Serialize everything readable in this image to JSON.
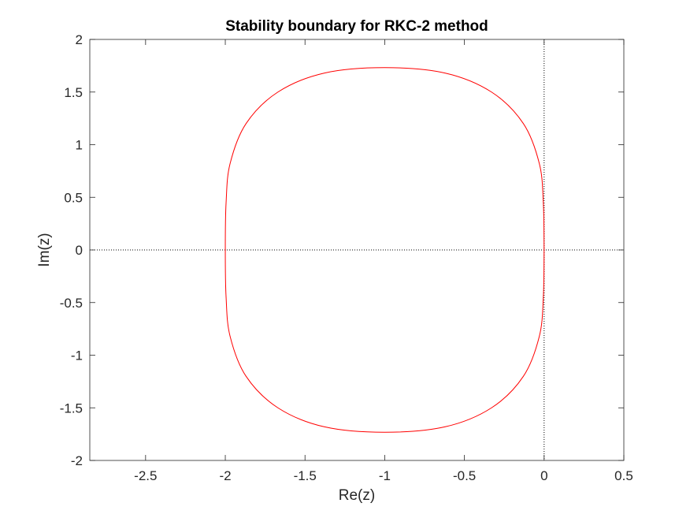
{
  "chart_data": {
    "type": "line",
    "title": "Stability boundary for RKC-2 method",
    "xlabel": "Re(z)",
    "ylabel": "Im(z)",
    "xlim": [
      -2.85,
      0.5
    ],
    "ylim": [
      -2,
      2
    ],
    "xticks": [
      -2.5,
      -2,
      -1.5,
      -1,
      -0.5,
      0,
      0.5
    ],
    "yticks": [
      -2,
      -1.5,
      -1,
      -0.5,
      0,
      0.5,
      1,
      1.5,
      2
    ],
    "x_tick_labels": [
      "-2.5",
      "-2",
      "-1.5",
      "-1",
      "-0.5",
      "0",
      "0.5"
    ],
    "y_tick_labels": [
      "-2",
      "-1.5",
      "-1",
      "-0.5",
      "0",
      "0.5",
      "1",
      "1.5",
      "2"
    ],
    "grid": false,
    "reference_lines": [
      {
        "orientation": "horizontal",
        "value": 0,
        "style": "dotted",
        "color": "#000000"
      },
      {
        "orientation": "vertical",
        "value": 0,
        "style": "dotted",
        "color": "#000000"
      }
    ],
    "series": [
      {
        "color": "#ff0000",
        "curve": "stability boundary |1 + z + z^2/2| = 1",
        "x": [
          0,
          -0.005,
          -0.03,
          -0.13,
          -0.33,
          -0.62,
          -1,
          -1.38,
          -1.67,
          -1.87,
          -1.97,
          -1.995,
          -2,
          -1.995,
          -1.97,
          -1.87,
          -1.67,
          -1.38,
          -1,
          -0.62,
          -0.33,
          -0.13,
          -0.03,
          -0.005,
          0
        ],
        "y": [
          0,
          0.45,
          0.82,
          1.2,
          1.5,
          1.68,
          1.732,
          1.68,
          1.5,
          1.2,
          0.82,
          0.45,
          0,
          -0.45,
          -0.82,
          -1.2,
          -1.5,
          -1.68,
          -1.732,
          -1.68,
          -1.5,
          -1.2,
          -0.82,
          -0.45,
          0
        ]
      }
    ]
  }
}
